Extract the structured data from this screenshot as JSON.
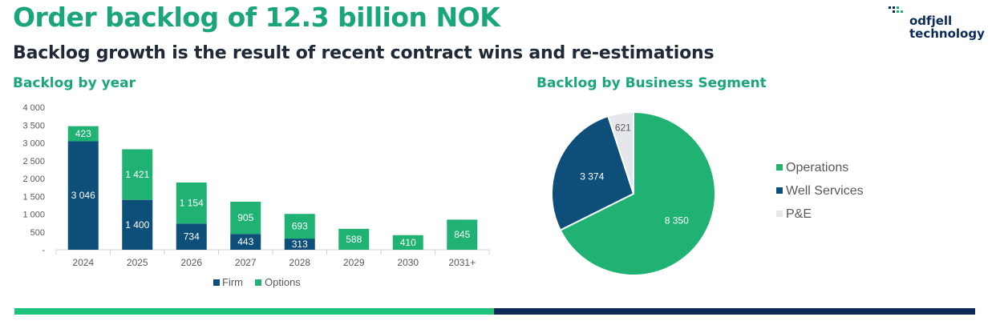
{
  "header": {
    "title": "Order backlog of 12.3 billion NOK",
    "subtitle": "Backlog growth is the result of recent contract wins and re-estimations",
    "logo_line1": "odfjell",
    "logo_line2": "technology"
  },
  "colors": {
    "accent_green": "#1aa57a",
    "firm": "#0d4f78",
    "options": "#1fb272",
    "pe": "#e5e7ea",
    "navy": "#0b2a5a"
  },
  "chart_data": [
    {
      "type": "bar",
      "stacked": true,
      "title": "Backlog by year",
      "categories": [
        "2024",
        "2025",
        "2026",
        "2027",
        "2028",
        "2029",
        "2030",
        "2031+"
      ],
      "series": [
        {
          "name": "Firm",
          "values": [
            3046,
            1400,
            734,
            443,
            313,
            0,
            0,
            0
          ],
          "labels": [
            "3 046",
            "1 400",
            "734",
            "443",
            "313",
            "",
            "",
            ""
          ]
        },
        {
          "name": "Options",
          "values": [
            423,
            1421,
            1154,
            905,
            693,
            588,
            410,
            845
          ],
          "labels": [
            "423",
            "1 421",
            "1 154",
            "905",
            "693",
            "588",
            "410",
            "845"
          ]
        }
      ],
      "yticks": [
        "-",
        "500",
        "1 000",
        "1 500",
        "2 000",
        "2 500",
        "3 000",
        "3 500",
        "4 000"
      ],
      "ylim": [
        0,
        4000
      ],
      "legend_position": "bottom",
      "grid": false
    },
    {
      "type": "pie",
      "title": "Backlog by Business Segment",
      "slices": [
        {
          "name": "Operations",
          "value": 8350,
          "label": "8 350"
        },
        {
          "name": "Well Services",
          "value": 3374,
          "label": "3 374"
        },
        {
          "name": "P&E",
          "value": 621,
          "label": "621"
        }
      ],
      "legend_position": "right"
    }
  ]
}
